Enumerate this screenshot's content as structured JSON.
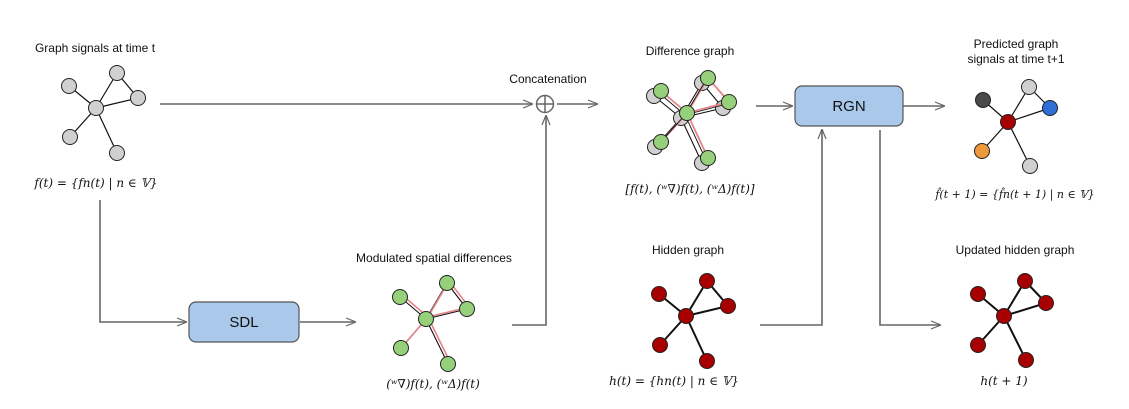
{
  "labels": {
    "input_title": "Graph signals at time t",
    "input_formula": "f(t) = {fn(t) | n ∈ 𝕍}",
    "concat": "Concatenation",
    "diff_title": "Difference graph",
    "diff_formula": "[f(t), (ʷ∇)f(t), (ʷΔ)f(t)]",
    "pred_title_line1": "Predicted graph",
    "pred_title_line2": "signals at time t+1",
    "pred_formula": "f̂(t + 1) = {f̂n(t + 1) | n ∈ 𝕍}",
    "mod_title": "Modulated spatial differences",
    "mod_formula": "(ʷ∇)f(t), (ʷΔ)f(t)",
    "hidden_title": "Hidden graph",
    "hidden_formula": "h(t) = {hn(t) | n ∈ 𝕍}",
    "updated_title": "Updated hidden graph",
    "updated_formula": "h(t + 1)"
  },
  "boxes": {
    "sdl": "SDL",
    "rgn": "RGN"
  },
  "colors": {
    "box_fill": "#a9c8ea",
    "box_stroke": "#555555",
    "arrow": "#666666",
    "node_gray": "#d0d0d0",
    "node_green": "#97d07a",
    "node_red": "#a80000",
    "node_dark": "#4a4a4a",
    "node_blue": "#2f6fd6",
    "node_orange": "#ee9a3c",
    "edge_pink": "#e5848a",
    "edge_dark": "#111111"
  }
}
